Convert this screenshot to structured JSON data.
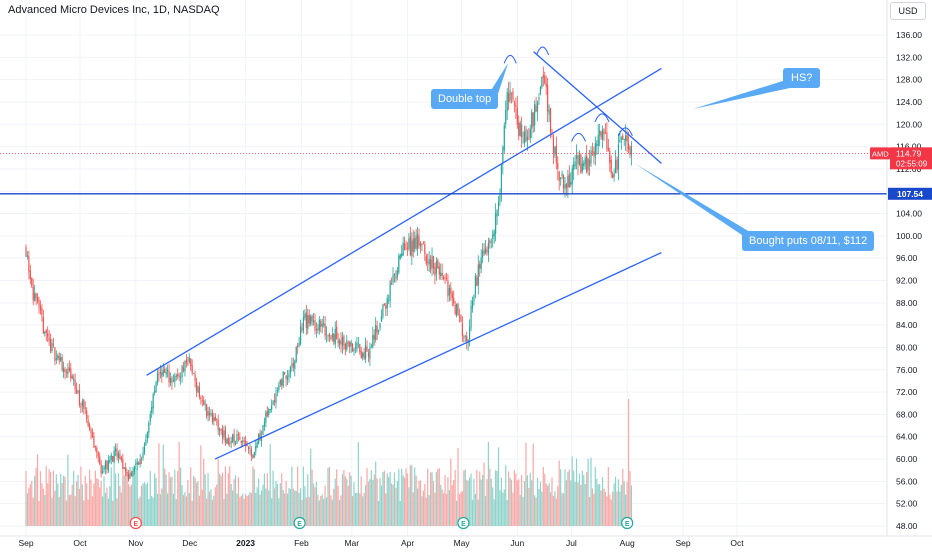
{
  "header": {
    "title": "Advanced Micro Devices Inc, 1D, NASDAQ",
    "currency": "USD"
  },
  "chart_data": {
    "type": "candlestick",
    "title": "Advanced Micro Devices Inc, 1D, NASDAQ",
    "ylim": [
      46,
      138
    ],
    "y_ticks": [
      "48.00",
      "52.00",
      "56.00",
      "60.00",
      "64.00",
      "68.00",
      "72.00",
      "76.00",
      "80.00",
      "84.00",
      "88.00",
      "92.00",
      "96.00",
      "100.00",
      "104.00",
      "108.00",
      "112.00",
      "116.00",
      "120.00",
      "124.00",
      "128.00",
      "132.00",
      "136.00"
    ],
    "x_ticks": [
      "Sep",
      "Oct",
      "Nov",
      "Dec",
      "2023",
      "Feb",
      "Mar",
      "Apr",
      "May",
      "Jun",
      "Jul",
      "Aug",
      "Sep",
      "Oct"
    ],
    "price_path": [
      [
        "2022-09-01",
        98
      ],
      [
        "2022-09-06",
        88
      ],
      [
        "2022-09-15",
        80
      ],
      [
        "2022-09-27",
        74
      ],
      [
        "2022-10-06",
        66
      ],
      [
        "2022-10-13",
        58
      ],
      [
        "2022-10-21",
        61
      ],
      [
        "2022-10-28",
        57
      ],
      [
        "2022-11-04",
        60
      ],
      [
        "2022-11-14",
        76
      ],
      [
        "2022-11-23",
        74
      ],
      [
        "2022-11-30",
        78
      ],
      [
        "2022-12-08",
        70
      ],
      [
        "2022-12-22",
        63
      ],
      [
        "2022-12-30",
        64
      ],
      [
        "2023-01-05",
        61
      ],
      [
        "2023-01-12",
        67
      ],
      [
        "2023-01-20",
        74
      ],
      [
        "2023-01-27",
        76
      ],
      [
        "2023-02-02",
        85
      ],
      [
        "2023-02-10",
        84
      ],
      [
        "2023-02-20",
        82
      ],
      [
        "2023-03-01",
        80
      ],
      [
        "2023-03-10",
        79
      ],
      [
        "2023-03-20",
        88
      ],
      [
        "2023-03-29",
        97
      ],
      [
        "2023-04-06",
        99
      ],
      [
        "2023-04-12",
        96
      ],
      [
        "2023-04-20",
        93
      ],
      [
        "2023-04-28",
        87
      ],
      [
        "2023-05-04",
        81
      ],
      [
        "2023-05-09",
        92
      ],
      [
        "2023-05-17",
        100
      ],
      [
        "2023-05-22",
        106
      ],
      [
        "2023-05-26",
        127
      ],
      [
        "2023-06-01",
        120
      ],
      [
        "2023-06-07",
        117
      ],
      [
        "2023-06-13",
        127
      ],
      [
        "2023-06-15",
        130
      ],
      [
        "2023-06-22",
        114
      ],
      [
        "2023-06-27",
        108
      ],
      [
        "2023-07-03",
        113
      ],
      [
        "2023-07-10",
        112
      ],
      [
        "2023-07-14",
        116
      ],
      [
        "2023-07-18",
        120
      ],
      [
        "2023-07-24",
        111
      ],
      [
        "2023-07-31",
        119
      ],
      [
        "2023-08-02",
        116
      ],
      [
        "2023-08-04",
        114.79
      ]
    ],
    "volume_peak_date": "2023-08-02",
    "current_price": {
      "symbol": "AMD",
      "value": "114.79",
      "countdown": "02:55:09"
    },
    "horizontal_line": {
      "value": 107.54,
      "label": "107.54"
    },
    "trendlines": [
      {
        "name": "upper-channel-line",
        "from": [
          "2022-11-07",
          75
        ],
        "to": [
          "2023-08-20",
          130
        ]
      },
      {
        "name": "lower-channel-line",
        "from": [
          "2022-12-15",
          60
        ],
        "to": [
          "2023-08-20",
          97
        ]
      },
      {
        "name": "descending-resistance-line",
        "from": [
          "2023-06-10",
          133
        ],
        "to": [
          "2023-08-20",
          113
        ]
      }
    ],
    "annotations": [
      {
        "text": "Double top"
      },
      {
        "text": "HS?"
      },
      {
        "text": "Bought puts 08/11, $112"
      }
    ],
    "earnings_markers": [
      "2022-11-01",
      "2023-01-31",
      "2023-05-02",
      "2023-08-01"
    ],
    "colors": {
      "up": "#26a69a",
      "down": "#ef5350",
      "up_volume": "#8fd3cb",
      "down_volume": "#f7a9a7",
      "trendline": "#2962ff",
      "hline": "#1848cc",
      "price_label": "#f23645",
      "annotation": "#5aa9f5"
    }
  }
}
